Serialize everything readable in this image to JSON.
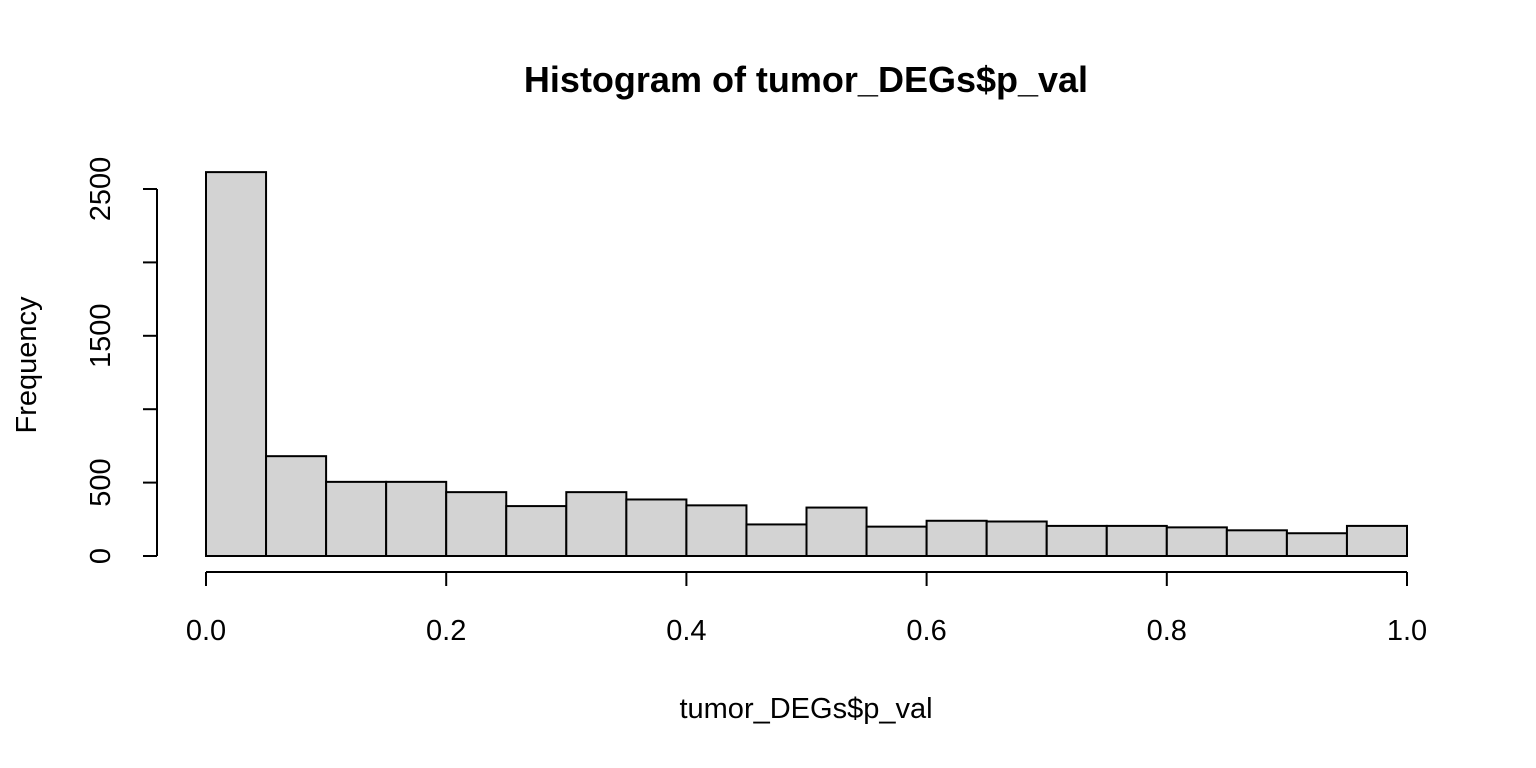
{
  "chart_data": {
    "type": "bar",
    "title": "Histogram of tumor_DEGs$p_val",
    "xlabel": "tumor_DEGs$p_val",
    "ylabel": "Frequency",
    "bin_edges": [
      0.0,
      0.05,
      0.1,
      0.15,
      0.2,
      0.25,
      0.3,
      0.35,
      0.4,
      0.45,
      0.5,
      0.55,
      0.6,
      0.65,
      0.7,
      0.75,
      0.8,
      0.85,
      0.9,
      0.95,
      1.0
    ],
    "values": [
      2615,
      680,
      505,
      505,
      435,
      340,
      435,
      385,
      345,
      215,
      330,
      200,
      240,
      235,
      205,
      205,
      195,
      175,
      155,
      205
    ],
    "xlim": [
      0.0,
      1.0
    ],
    "ylim": [
      0,
      2500
    ],
    "x_ticks": [
      0.0,
      0.2,
      0.4,
      0.6,
      0.8,
      1.0
    ],
    "x_tick_labels": [
      "0.0",
      "0.2",
      "0.4",
      "0.6",
      "0.8",
      "1.0"
    ],
    "y_ticks": [
      0,
      500,
      1000,
      1500,
      2000,
      2500
    ],
    "y_tick_labels": [
      "0",
      "500",
      "",
      "1500",
      "",
      "2500"
    ],
    "bar_color": "#d3d3d3",
    "grid": false
  }
}
